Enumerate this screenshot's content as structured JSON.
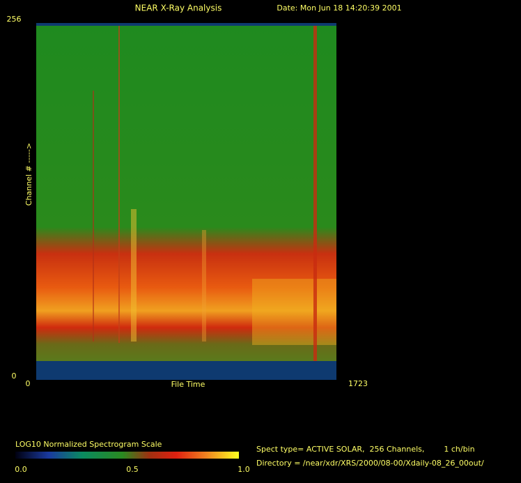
{
  "chart_data": {
    "type": "spectrogram",
    "title": "NEAR X-Ray Analysis",
    "date": "Date: Mon Jun 18 14:20:39 2001",
    "x_label": "File Time",
    "y_label": "Channel # ----->",
    "xlim": [
      0,
      1723
    ],
    "xticks": [
      0,
      1723
    ],
    "ylim": [
      0,
      256
    ],
    "yticks": [
      0,
      256
    ],
    "colorbar": {
      "title": "LOG10 Normalized Spectrogram Scale",
      "lim": [
        0,
        1
      ],
      "ticks": [
        {
          "value": 0,
          "label": "0.0"
        },
        {
          "value": 0.5,
          "label": "0.5"
        },
        {
          "value": 1,
          "label": "1.0"
        }
      ]
    },
    "info": [
      "Spect type= ACTIVE SOLAR,  256 Channels,        1 ch/bin",
      "Directory = /near/xdr/XRS/2000/08-00/Xdaily-08_26_00out/"
    ]
  }
}
